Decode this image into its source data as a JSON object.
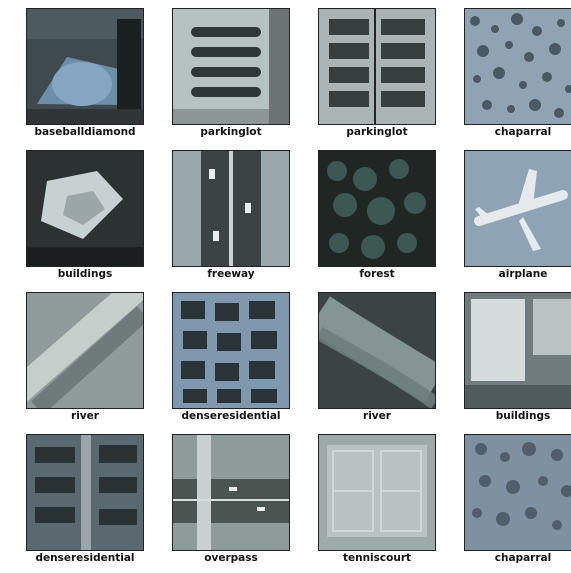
{
  "grid": {
    "tiles": [
      {
        "label": "baseballdiamond",
        "scene": "baseballdiamond",
        "palette": {
          "bg": "#3f4a4f",
          "accent": "#6f8fa8"
        }
      },
      {
        "label": "parkinglot",
        "scene": "parkinglot",
        "palette": {
          "bg": "#b6c2c0",
          "accent": "#2f3836"
        }
      },
      {
        "label": "parkinglot",
        "scene": "parkinglot2",
        "palette": {
          "bg": "#aab4b4",
          "accent": "#2b3332"
        }
      },
      {
        "label": "chaparral",
        "scene": "chaparral",
        "palette": {
          "bg": "#8fa3b3",
          "accent": "#4a5a63"
        }
      },
      {
        "label": "buildings",
        "scene": "buildings",
        "palette": {
          "bg": "#2c3232",
          "accent": "#c7d1d1"
        }
      },
      {
        "label": "freeway",
        "scene": "freeway",
        "palette": {
          "bg": "#9aa7ab",
          "accent": "#3b4445"
        }
      },
      {
        "label": "forest",
        "scene": "forest",
        "palette": {
          "bg": "#1f2624",
          "accent": "#3f5a55"
        }
      },
      {
        "label": "airplane",
        "scene": "airplane",
        "palette": {
          "bg": "#8ea4b5",
          "accent": "#e5eaee"
        }
      },
      {
        "label": "river",
        "scene": "river",
        "palette": {
          "bg": "#8f9c9b",
          "accent": "#c4cfcc"
        }
      },
      {
        "label": "denseresidential",
        "scene": "denseresidential",
        "palette": {
          "bg": "#7f98ad",
          "accent": "#2a3438"
        }
      },
      {
        "label": "river",
        "scene": "river2",
        "palette": {
          "bg": "#3a4444",
          "accent": "#8e9e9e"
        }
      },
      {
        "label": "buildings",
        "scene": "buildings2",
        "palette": {
          "bg": "#6f7b7c",
          "accent": "#d6dcdc"
        }
      },
      {
        "label": "denseresidential",
        "scene": "denseresidential2",
        "palette": {
          "bg": "#5a6870",
          "accent": "#2a3234"
        }
      },
      {
        "label": "overpass",
        "scene": "overpass",
        "palette": {
          "bg": "#8f9b98",
          "accent": "#4a5451"
        }
      },
      {
        "label": "tenniscourt",
        "scene": "tenniscourt",
        "palette": {
          "bg": "#9eaaa8",
          "accent": "#cfd8d6"
        }
      },
      {
        "label": "chaparral",
        "scene": "chaparral2",
        "palette": {
          "bg": "#7f90a0",
          "accent": "#4f5e6a"
        }
      }
    ]
  }
}
